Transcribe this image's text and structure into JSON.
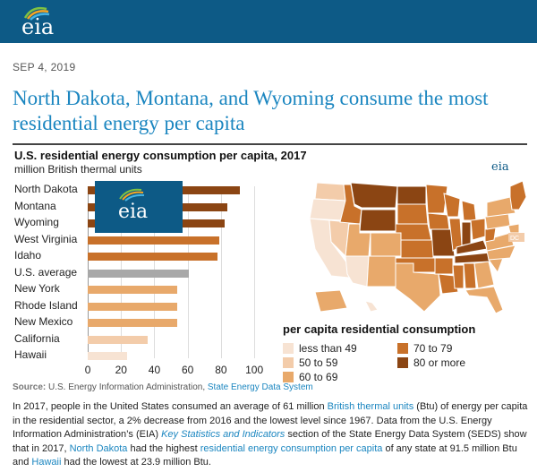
{
  "header": {
    "logo_text": "eia"
  },
  "article": {
    "date": "SEP 4, 2019",
    "headline": "North Dakota, Montana, and Wyoming consume the most residential energy per capita"
  },
  "chart_data": {
    "type": "bar",
    "title": "U.S. residential energy consumption per capita, 2017",
    "subtitle": "million British thermal units",
    "categories": [
      "North Dakota",
      "Montana",
      "Wyoming",
      "West Virginia",
      "Idaho",
      "U.S. average",
      "New York",
      "Rhode Island",
      "New Mexico",
      "California",
      "Hawaii"
    ],
    "values": [
      91.5,
      84,
      82,
      79,
      78,
      61,
      54,
      54,
      54,
      36,
      23.9
    ],
    "colors": [
      "#8b4513",
      "#8b4513",
      "#8b4513",
      "#c8712a",
      "#c8712a",
      "#a8a8a8",
      "#e8a96b",
      "#e8a96b",
      "#e8a96b",
      "#f3ccaa",
      "#f7e3d3"
    ],
    "xlim": [
      0,
      100
    ],
    "xticks": [
      "0",
      "20",
      "40",
      "60",
      "80",
      "100"
    ],
    "overlay_logo_text": "eia"
  },
  "map": {
    "logo_text": "eia",
    "dc_label": "DC",
    "legend_title": "per capita residential consumption",
    "legend": [
      {
        "label": "less than 49",
        "color": "#f7e3d3"
      },
      {
        "label": "50 to 59",
        "color": "#f3ccaa"
      },
      {
        "label": "60 to 69",
        "color": "#e8a96b"
      },
      {
        "label": "70 to 79",
        "color": "#c8712a"
      },
      {
        "label": "80 or more",
        "color": "#8b4513"
      }
    ]
  },
  "source": {
    "label": "Source:",
    "text": "U.S. Energy Information Administration,",
    "link": "State Energy Data System"
  },
  "body": {
    "p1": "In 2017, people in the United States consumed an average of 61 million ",
    "link1": "British thermal units",
    "p2": " (Btu) of energy per capita in the residential sector, a 2% decrease from 2016 and the lowest level since 1967. Data from the U.S. Energy Information Administration’s (EIA) ",
    "link2": "Key Statistics and Indicators",
    "p3": " section of the State Energy Data System (SEDS) show that in 2017, ",
    "link3": "North Dakota",
    "p4": " had the highest ",
    "link4": "residential energy consumption per capita",
    "p5": " of any state at 91.5 million Btu and ",
    "link5": "Hawaii",
    "p6": " had the lowest at 23.9 million Btu."
  }
}
